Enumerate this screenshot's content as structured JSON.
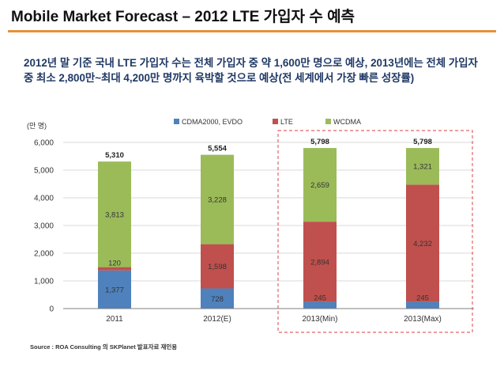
{
  "title": "Mobile Market Forecast – 2012 LTE 가입자 수 예측",
  "headline": "2012년 말 기준 국내 LTE 가입자 수는 전체 가입자 중 약 1,600만 명으로 예상, 2013년에는 전체 가입자 중 최소 2,800만~최대 4,200만 명까지 육박할 것으로 예상(전 세계에서 가장 빠른 성장률)",
  "source": "Source : ROA Consulting 의 SKPlanet 발표자료 재인용",
  "colors": {
    "cdma": "#4f81bd",
    "lte": "#c0504d",
    "wcdma": "#9bbb59",
    "title_rule": "#e69138",
    "highlight_box": "#e06666"
  },
  "chart_data": {
    "type": "bar",
    "stacked": true,
    "unit_label": "(만 명)",
    "categories": [
      "2011",
      "2012(E)",
      "2013(Min)",
      "2013(Max)"
    ],
    "series": [
      {
        "name": "CDMA2000, EVDO",
        "values": [
          1377,
          728,
          245,
          245
        ]
      },
      {
        "name": "LTE",
        "values": [
          120,
          1598,
          2894,
          4232
        ]
      },
      {
        "name": "WCDMA",
        "values": [
          3813,
          3228,
          2659,
          1321
        ]
      }
    ],
    "totals": [
      5310,
      5554,
      5798,
      5798
    ],
    "data_labels": [
      [
        "1,377",
        "120",
        "3,813"
      ],
      [
        "728",
        "1,598",
        "3,228"
      ],
      [
        "245",
        "2,894",
        "2,659"
      ],
      [
        "245",
        "4,232",
        "1,321"
      ]
    ],
    "total_labels": [
      "5,310",
      "5,554",
      "5,798",
      "5,798"
    ],
    "yticks": [
      0,
      1000,
      2000,
      3000,
      4000,
      5000,
      6000
    ],
    "ytick_labels": [
      "0",
      "1,000",
      "2,000",
      "3,000",
      "4,000",
      "5,000",
      "6,000"
    ],
    "ylim": [
      0,
      6000
    ],
    "legend_position": "top-right",
    "highlight": "2013 bars outlined with dashed box"
  }
}
